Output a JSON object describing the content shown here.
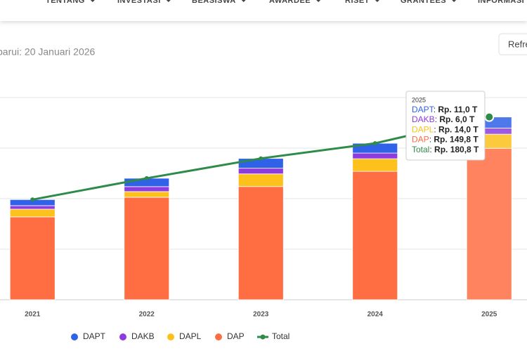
{
  "nav": {
    "items": [
      "TENTANG",
      "INVESTASI",
      "BEASISWA",
      "AWARDEE",
      "RISET",
      "GRANTEES",
      "INFORMASI"
    ]
  },
  "updated": "barui: 20 Januari 2026",
  "refresh_button": "Refre",
  "chart_data": {
    "type": "stacked-bar-line",
    "categories": [
      "2021",
      "2022",
      "2023",
      "2024",
      "2025"
    ],
    "series": [
      {
        "name": "DAPT",
        "color": "#2f62e8",
        "values": [
          6.0,
          8.3,
          9.7,
          9.7,
          11.0
        ],
        "value_labels": [
          null,
          null,
          null,
          null,
          "Rp. 11,0 T"
        ]
      },
      {
        "name": "DAKB",
        "color": "#8e3be0",
        "values": [
          3.5,
          4.9,
          5.6,
          5.6,
          6.0
        ],
        "value_labels": [
          null,
          null,
          null,
          null,
          "Rp. 6,0 T"
        ]
      },
      {
        "name": "DAPL",
        "color": "#fcc21b",
        "values": [
          7.6,
          5.6,
          12.5,
          12.5,
          14.0
        ],
        "value_labels": [
          null,
          null,
          null,
          null,
          "Rp. 14,0 T"
        ]
      },
      {
        "name": "DAP",
        "color": "#ff6d42",
        "values": [
          82.0,
          101.4,
          112.0,
          127.0,
          149.8
        ],
        "value_labels": [
          null,
          null,
          null,
          null,
          "Rp. 149,8 T"
        ]
      }
    ],
    "total": {
      "name": "Total",
      "color": "#2e8b4a",
      "values": [
        99.1,
        120.2,
        139.8,
        154.8,
        180.8
      ],
      "value_labels": [
        null,
        null,
        null,
        null,
        "Rp. 180,8 T"
      ]
    },
    "ylim": [
      0,
      200
    ],
    "yticks": [
      0,
      50,
      100,
      150,
      200
    ],
    "grid": true
  }
}
